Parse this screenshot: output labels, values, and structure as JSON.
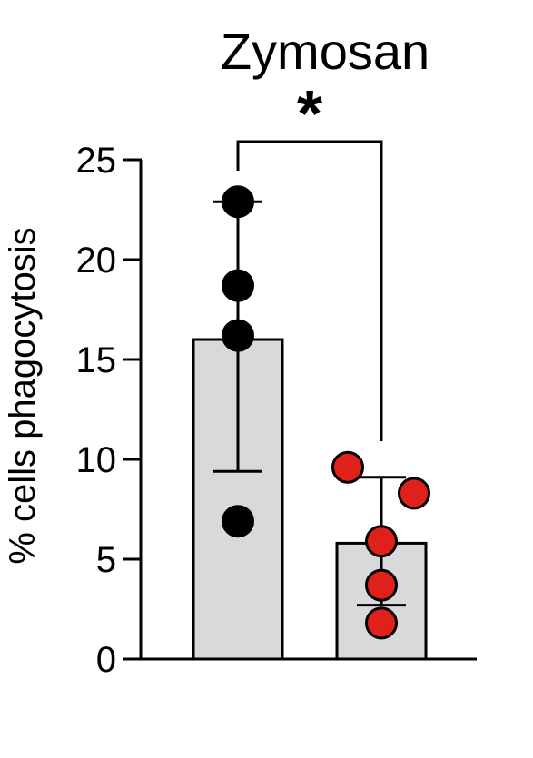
{
  "chart_data": {
    "type": "bar",
    "title": "Zymosan",
    "ylabel": "% cells phagocytosis",
    "xlabel": "",
    "ylim": [
      0,
      25
    ],
    "yticks": [
      "0",
      "5",
      "10",
      "15",
      "20",
      "25"
    ],
    "categories": [
      "",
      ""
    ],
    "grid": false,
    "bar_color": "#d9d9db",
    "groups": [
      {
        "mean": 16.0,
        "error_low": 9.4,
        "error_high": 22.9,
        "point_color": "#000000",
        "points": [
          22.9,
          18.7,
          16.2,
          6.9
        ]
      },
      {
        "mean": 5.8,
        "error_low": 2.7,
        "error_high": 9.1,
        "point_color": "#e0201b",
        "points": [
          9.6,
          8.3,
          5.9,
          3.7,
          1.8
        ]
      }
    ],
    "significance": {
      "label": "*",
      "between": [
        0,
        1
      ]
    }
  }
}
